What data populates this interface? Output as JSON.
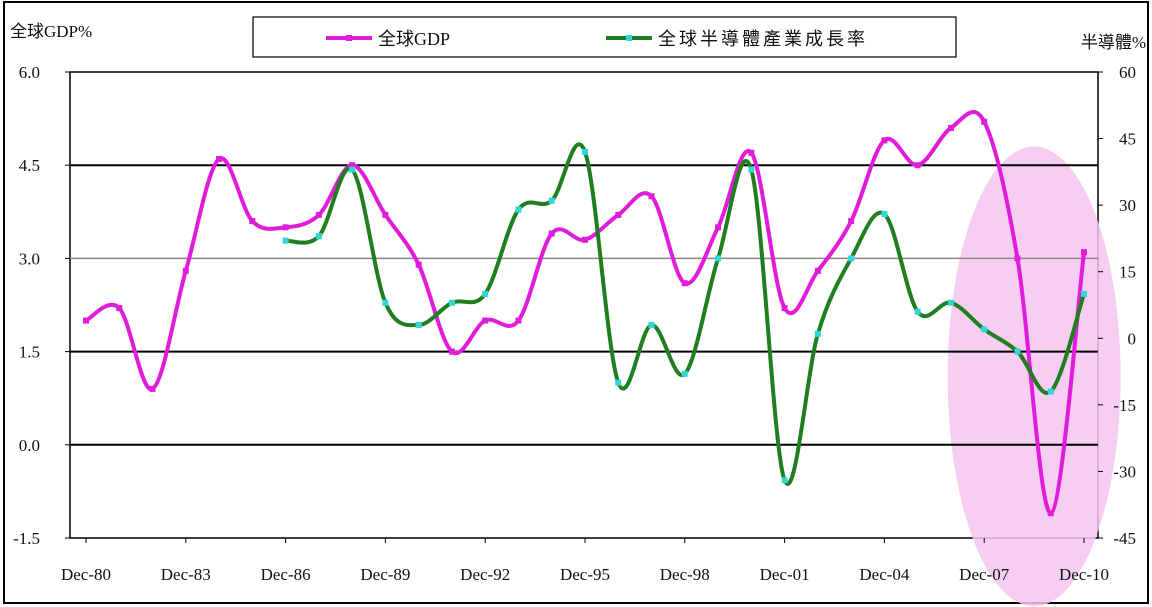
{
  "chart_data": {
    "type": "line",
    "left_axis_title": "全球GDP%",
    "right_axis_title": "半導體%",
    "x_tick_labels": [
      "Dec-80",
      "Dec-83",
      "Dec-86",
      "Dec-89",
      "Dec-92",
      "Dec-95",
      "Dec-98",
      "Dec-01",
      "Dec-04",
      "Dec-07",
      "Dec-10"
    ],
    "x_range": [
      1980,
      2010
    ],
    "y_left": {
      "min": -1.5,
      "max": 6.0,
      "ticks": [
        "6.0",
        "4.5",
        "3.0",
        "1.5",
        "0.0",
        "-1.5"
      ],
      "tick_values": [
        6.0,
        4.5,
        3.0,
        1.5,
        0.0,
        -1.5
      ]
    },
    "y_right": {
      "min": -45,
      "max": 60,
      "ticks": [
        "60",
        "45",
        "30",
        "15",
        "0",
        "-15",
        "-30",
        "-45"
      ],
      "tick_values": [
        60,
        45,
        30,
        15,
        0,
        -15,
        -30,
        -45
      ]
    },
    "grid": {
      "heavy_left_values": [
        4.5,
        1.5,
        0.0
      ],
      "light_left_values": [
        3.0
      ]
    },
    "legend_position": "top",
    "highlight": {
      "color": "#f6c6f0",
      "x_center": 2008.5,
      "x_halfwidth": 2.6,
      "y_center_left": 1.1,
      "y_halfwidth_left": 3.7
    },
    "series": [
      {
        "name": "全球GDP",
        "axis": "left",
        "color": "#e01bd9",
        "marker_color": "#e01bd9",
        "x": [
          1980,
          1981,
          1982,
          1983,
          1984,
          1985,
          1986,
          1987,
          1988,
          1989,
          1990,
          1991,
          1992,
          1993,
          1994,
          1995,
          1996,
          1997,
          1998,
          1999,
          2000,
          2001,
          2002,
          2003,
          2004,
          2005,
          2006,
          2007,
          2008,
          2009,
          2010
        ],
        "values": [
          2.0,
          2.2,
          0.9,
          2.8,
          4.6,
          3.6,
          3.5,
          3.7,
          4.5,
          3.7,
          2.9,
          1.5,
          2.0,
          2.0,
          3.4,
          3.3,
          3.7,
          4.0,
          2.6,
          3.5,
          4.7,
          2.2,
          2.8,
          3.6,
          4.9,
          4.5,
          5.1,
          5.2,
          3.0,
          -1.1,
          3.1
        ]
      },
      {
        "name": "全球半導體產業成長率",
        "axis": "right",
        "color": "#1f7f1f",
        "marker_color": "#2fd8d8",
        "x": [
          1986,
          1987,
          1988,
          1989,
          1990,
          1991,
          1992,
          1993,
          1994,
          1995,
          1996,
          1997,
          1998,
          1999,
          2000,
          2001,
          2002,
          2003,
          2004,
          2005,
          2006,
          2007,
          2008,
          2009,
          2010
        ],
        "values": [
          22,
          23,
          38,
          8,
          3,
          8,
          10,
          29,
          31,
          42,
          -10,
          3,
          -8,
          18,
          38,
          -32,
          1,
          18,
          28,
          6,
          8,
          2,
          -3,
          -12,
          10
        ]
      }
    ]
  }
}
